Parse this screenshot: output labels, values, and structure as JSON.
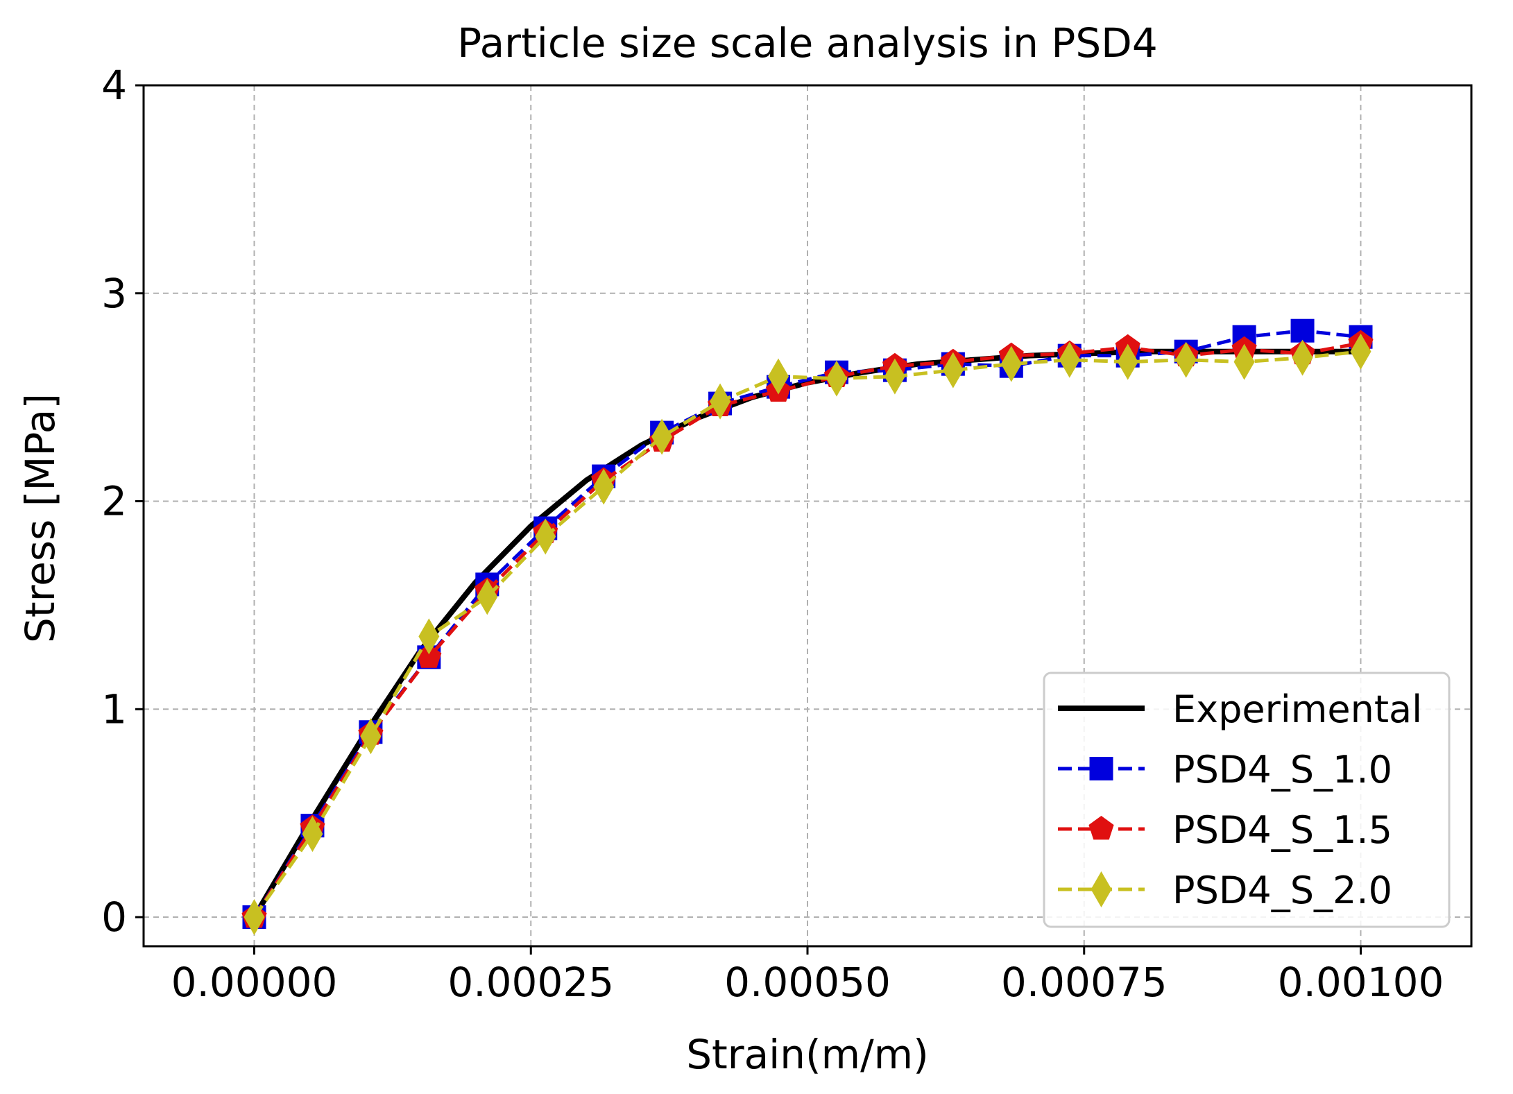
{
  "chart_data": {
    "type": "line",
    "title": "Particle size scale analysis in PSD4",
    "xlabel": "Strain(m/m)",
    "ylabel": "Stress [MPa]",
    "xlim": [
      -0.0001,
      0.0011
    ],
    "ylim": [
      -0.14,
      4.0
    ],
    "xticks": [
      0.0,
      0.00025,
      0.0005,
      0.00075,
      0.001
    ],
    "xtick_labels": [
      "0.00000",
      "0.00025",
      "0.00050",
      "0.00075",
      "0.00100"
    ],
    "yticks": [
      0,
      1,
      2,
      3,
      4
    ],
    "ytick_labels": [
      "0",
      "1",
      "2",
      "3",
      "4"
    ],
    "grid": true,
    "legend_position": "lower-right",
    "experimental": {
      "name": "Experimental",
      "color": "#000000",
      "x": [
        0.0,
        5e-05,
        0.0001,
        0.00015,
        0.0002,
        0.00025,
        0.0003,
        0.00035,
        0.0004,
        0.00045,
        0.0005,
        0.00055,
        0.0006,
        0.00065,
        0.0007,
        0.00075,
        0.0008,
        0.00085,
        0.0009,
        0.00095,
        0.001
      ],
      "y": [
        0.0,
        0.45,
        0.88,
        1.28,
        1.61,
        1.88,
        2.1,
        2.27,
        2.4,
        2.5,
        2.57,
        2.62,
        2.66,
        2.68,
        2.7,
        2.71,
        2.72,
        2.72,
        2.72,
        2.72,
        2.72
      ]
    },
    "series": [
      {
        "name": "PSD4_S_1.0",
        "color": "#0000dd",
        "marker": "square",
        "x": [
          0.0,
          5.263e-05,
          0.00010526,
          0.00015789,
          0.00021053,
          0.00026316,
          0.00031579,
          0.00036842,
          0.00042105,
          0.00047368,
          0.00052632,
          0.00057895,
          0.00063158,
          0.00068421,
          0.00073684,
          0.00078947,
          0.00084211,
          0.00089474,
          0.00094737,
          0.001
        ],
        "y": [
          0.0,
          0.44,
          0.89,
          1.25,
          1.6,
          1.87,
          2.12,
          2.33,
          2.47,
          2.55,
          2.62,
          2.63,
          2.66,
          2.65,
          2.7,
          2.7,
          2.72,
          2.79,
          2.82,
          2.79
        ]
      },
      {
        "name": "PSD4_S_1.5",
        "color": "#e01010",
        "marker": "pentagon",
        "x": [
          0.0,
          5.263e-05,
          0.00010526,
          0.00015789,
          0.00021053,
          0.00026316,
          0.00031579,
          0.00036842,
          0.00042105,
          0.00047368,
          0.00052632,
          0.00057895,
          0.00063158,
          0.00068421,
          0.00073684,
          0.00078947,
          0.00084211,
          0.00089474,
          0.00094737,
          0.001
        ],
        "y": [
          0.0,
          0.43,
          0.88,
          1.25,
          1.57,
          1.85,
          2.1,
          2.29,
          2.46,
          2.53,
          2.6,
          2.65,
          2.67,
          2.7,
          2.71,
          2.74,
          2.7,
          2.73,
          2.71,
          2.76
        ]
      },
      {
        "name": "PSD4_S_2.0",
        "color": "#c8c021",
        "marker": "diamond",
        "x": [
          0.0,
          5.263e-05,
          0.00010526,
          0.00015789,
          0.00021053,
          0.00026316,
          0.00031579,
          0.00036842,
          0.00042105,
          0.00047368,
          0.00052632,
          0.00057895,
          0.00063158,
          0.00068421,
          0.00073684,
          0.00078947,
          0.00084211,
          0.00089474,
          0.00094737,
          0.001
        ],
        "y": [
          0.0,
          0.4,
          0.87,
          1.35,
          1.54,
          1.83,
          2.07,
          2.31,
          2.48,
          2.6,
          2.59,
          2.6,
          2.63,
          2.66,
          2.68,
          2.67,
          2.68,
          2.67,
          2.69,
          2.72
        ]
      }
    ]
  }
}
